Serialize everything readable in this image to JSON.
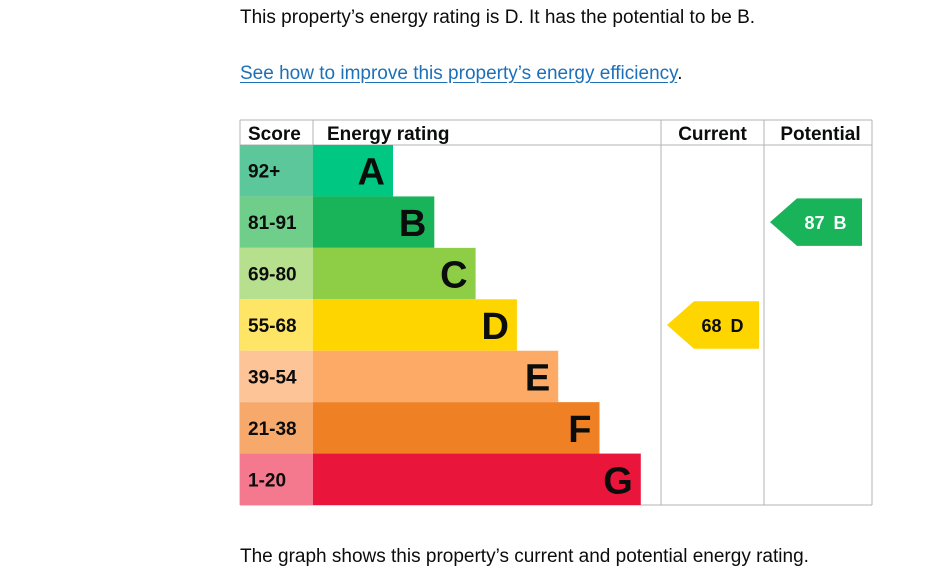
{
  "summary_text": "This property’s energy rating is D. It has the potential to be B.",
  "improve_link_text": "See how to improve this property’s energy efficiency",
  "improve_link_suffix": ".",
  "caption_text": "The graph shows this property’s current and potential energy rating.",
  "chart_data": {
    "type": "bar",
    "headers": {
      "score": "Score",
      "rating": "Energy rating",
      "current": "Current",
      "potential": "Potential"
    },
    "bands": [
      {
        "score": "92+",
        "letter": "A",
        "value": 1,
        "score_color": "#5cc79b",
        "bar_color": "#00c781"
      },
      {
        "score": "81-91",
        "letter": "B",
        "value": 2,
        "score_color": "#6fcf8a",
        "bar_color": "#19b459"
      },
      {
        "score": "69-80",
        "letter": "C",
        "value": 3,
        "score_color": "#b7e08e",
        "bar_color": "#8dce46"
      },
      {
        "score": "55-68",
        "letter": "D",
        "value": 4,
        "score_color": "#ffe566",
        "bar_color": "#ffd500"
      },
      {
        "score": "39-54",
        "letter": "E",
        "value": 5,
        "score_color": "#fdc497",
        "bar_color": "#fcaa65"
      },
      {
        "score": "21-38",
        "letter": "F",
        "value": 6,
        "score_color": "#f6a96b",
        "bar_color": "#ef8023"
      },
      {
        "score": "1-20",
        "letter": "G",
        "value": 7,
        "score_color": "#f5798e",
        "bar_color": "#e9153b"
      }
    ],
    "current": {
      "score": 68,
      "letter": "D",
      "color": "#ffd500",
      "text_color": "#0b0c0c"
    },
    "potential": {
      "score": 87,
      "letter": "B",
      "color": "#19b459",
      "text_color": "#ffffff"
    }
  }
}
